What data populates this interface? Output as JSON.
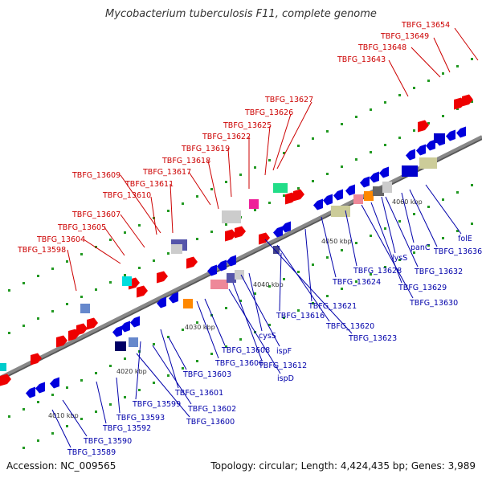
{
  "title": "Mycobacterium tuberculosis F11, complete genome",
  "footer": {
    "accession": "Accession: NC_009565",
    "summary": "Topology: circular; Length: 4,424,435 bp; Genes: 3,989"
  },
  "colors": {
    "top_labels": "#cc0000",
    "bottom_labels": "#0000aa",
    "forward_strand": "#ee0000",
    "reverse_strand": "#0000dd",
    "backbone": "#888888",
    "tick_dots": "#229922"
  },
  "ticks": [
    "4010 kbp",
    "4020 kbp",
    "4030 kbp",
    "4040 kbp",
    "4050 kbp",
    "4060 kbp"
  ],
  "top_labels": [
    "TBFG_13654",
    "TBFG_13649",
    "TBFG_13648",
    "TBFG_13643",
    "TBFG_13627",
    "TBFG_13626",
    "TBFG_13625",
    "TBFG_13622",
    "TBFG_13619",
    "TBFG_13618",
    "TBFG_13617",
    "TBFG_13611",
    "TBFG_13609",
    "TBFG_13610",
    "TBFG_13607",
    "TBFG_13605",
    "TBFG_13604",
    "TBFG_13598"
  ],
  "bottom_labels": [
    "folE",
    "TBFG_13636",
    "panC",
    "TBFG_13632",
    "lysS",
    "TBFG_13629",
    "TBFG_13630",
    "TBFG_13628",
    "TBFG_13624",
    "TBFG_13621",
    "TBFG_13616",
    "TBFG_13620",
    "TBFG_13623",
    "cysS",
    "ispF",
    "TBFG_13608",
    "TBFG_13606",
    "TBFG_13612",
    "ispD",
    "TBFG_13603",
    "TBFG_13601",
    "TBFG_13602",
    "TBFG_13599",
    "TBFG_13600",
    "TBFG_13593",
    "TBFG_13592",
    "TBFG_13590",
    "TBFG_13589"
  ]
}
